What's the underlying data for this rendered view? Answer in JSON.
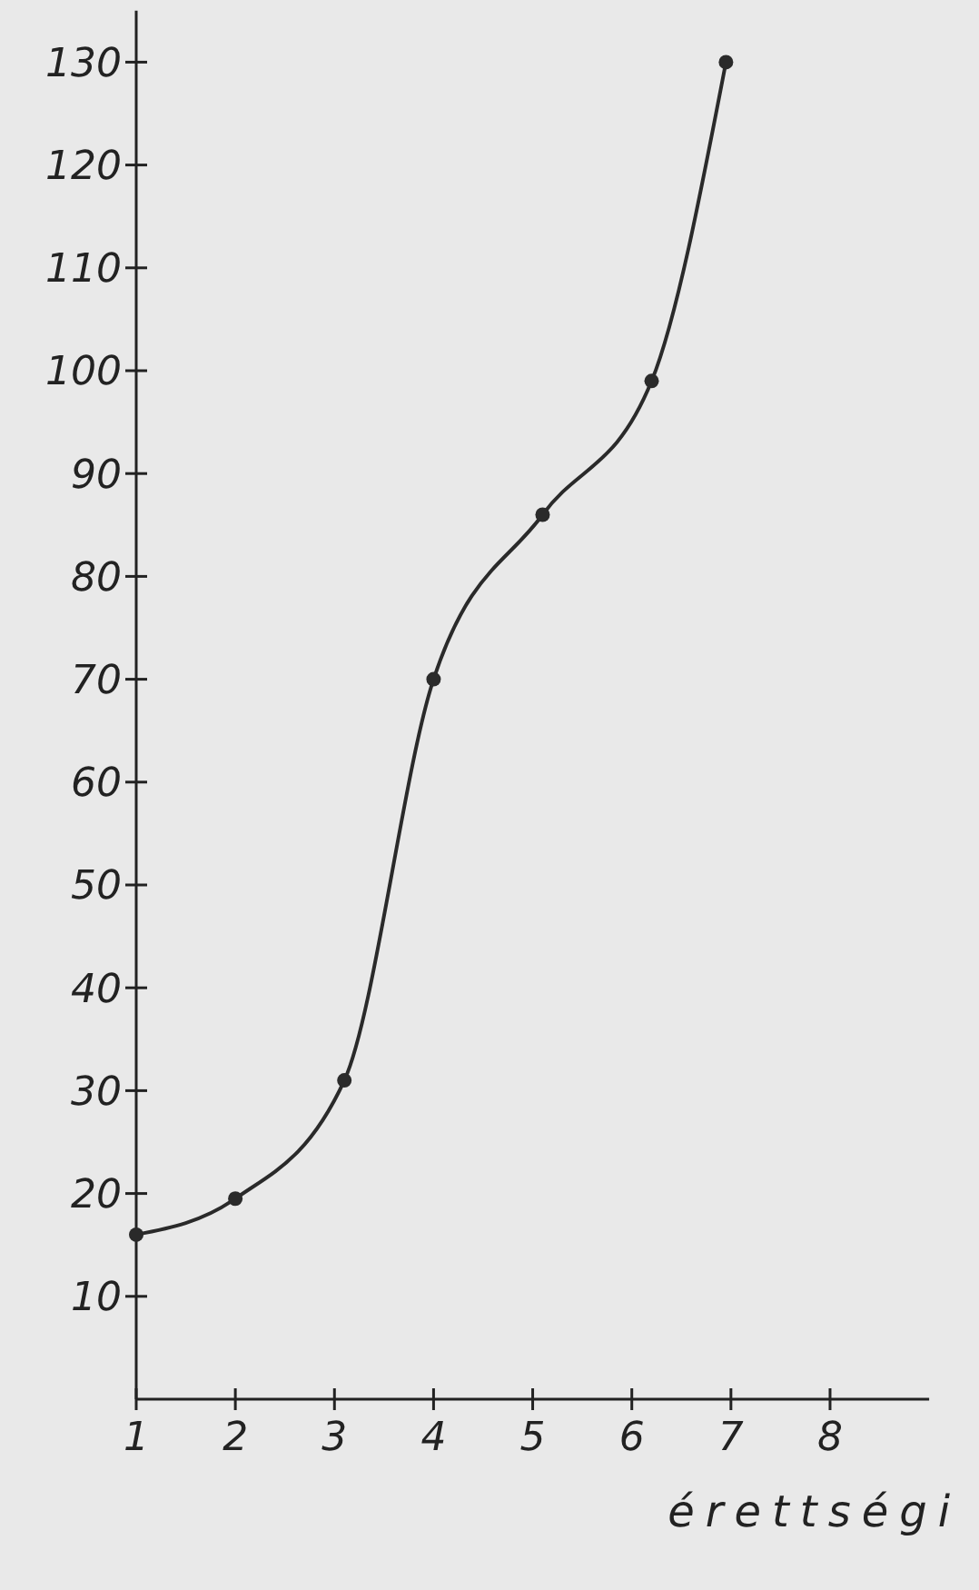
{
  "chart_data": {
    "type": "line",
    "xlabel": "érettségi",
    "x": [
      1,
      2,
      3.1,
      4,
      5.1,
      6.2,
      6.95
    ],
    "values": [
      16,
      19.5,
      31,
      70,
      86,
      99,
      130
    ],
    "color": "#2a2a2a",
    "marker": "circle",
    "line_style": "solid",
    "grid": false,
    "xlim": [
      1,
      9
    ],
    "xticks": [
      1,
      2,
      3,
      4,
      5,
      6,
      7,
      8
    ],
    "ylim": [
      0,
      135
    ],
    "yticks": [
      10,
      20,
      30,
      40,
      50,
      60,
      70,
      80,
      90,
      100,
      110,
      120,
      130
    ]
  }
}
